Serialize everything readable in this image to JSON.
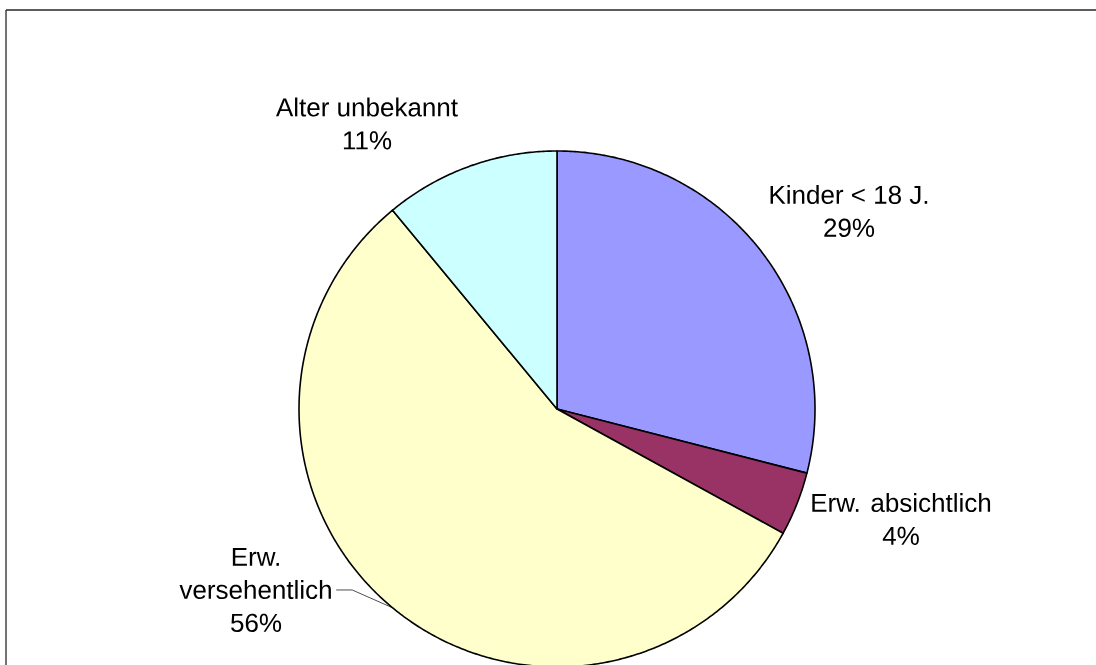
{
  "chart_data": {
    "type": "pie",
    "categories": [
      "Kinder < 18 J.",
      "Erw. absichtlich",
      "Erw. versehentlich",
      "Alter unbekannt"
    ],
    "values": [
      29,
      4,
      56,
      11
    ],
    "colors": [
      "#9999ff",
      "#993366",
      "#ffffcc",
      "#ccffff"
    ],
    "value_labels": [
      "29%",
      "4%",
      "56%",
      "11%"
    ]
  }
}
